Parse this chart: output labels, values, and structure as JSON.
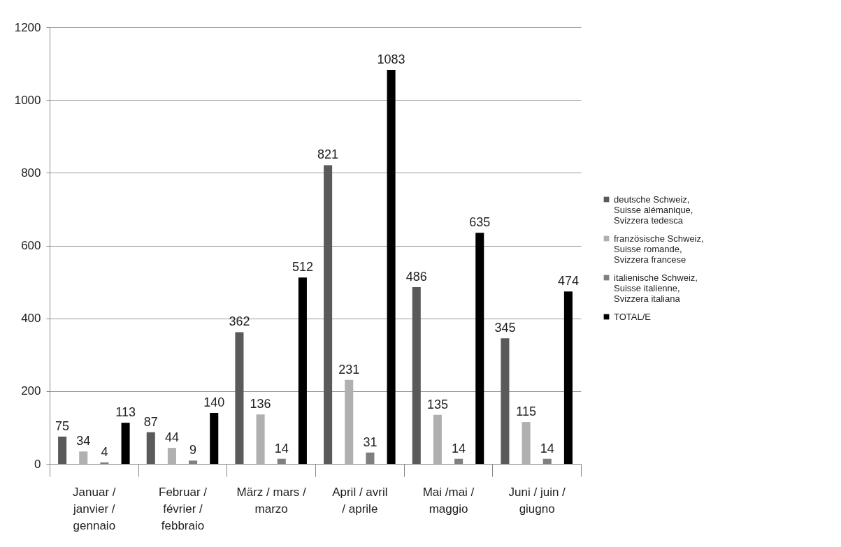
{
  "chart_data": {
    "type": "bar",
    "categories": [
      "Januar / janvier / gennaio",
      "Februar / février / febbraio",
      "März / mars / marzo",
      "April / avril / aprile",
      "Mai /mai / maggio",
      "Juni / juin / giugno"
    ],
    "series": [
      {
        "name": "deutsche Schweiz, Suisse alémanique, Svizzera tedesca",
        "color": "#5a5a5a",
        "values": [
          75,
          87,
          362,
          821,
          486,
          345
        ]
      },
      {
        "name": "französische Schweiz, Suisse romande, Svizzera francese",
        "color": "#b0b0b0",
        "values": [
          34,
          44,
          136,
          231,
          135,
          115
        ]
      },
      {
        "name": "italienische Schweiz, Suisse italienne, Svizzera italiana",
        "color": "#7f7f7f",
        "values": [
          4,
          9,
          14,
          31,
          14,
          14
        ]
      },
      {
        "name": "TOTAL/E",
        "color": "#000000",
        "values": [
          113,
          140,
          512,
          1083,
          635,
          474
        ]
      }
    ],
    "ylim": [
      0,
      1200
    ],
    "yticks": [
      0,
      200,
      400,
      600,
      800,
      1000,
      1200
    ],
    "grid": "y",
    "legend": "right",
    "data_labels": true
  }
}
